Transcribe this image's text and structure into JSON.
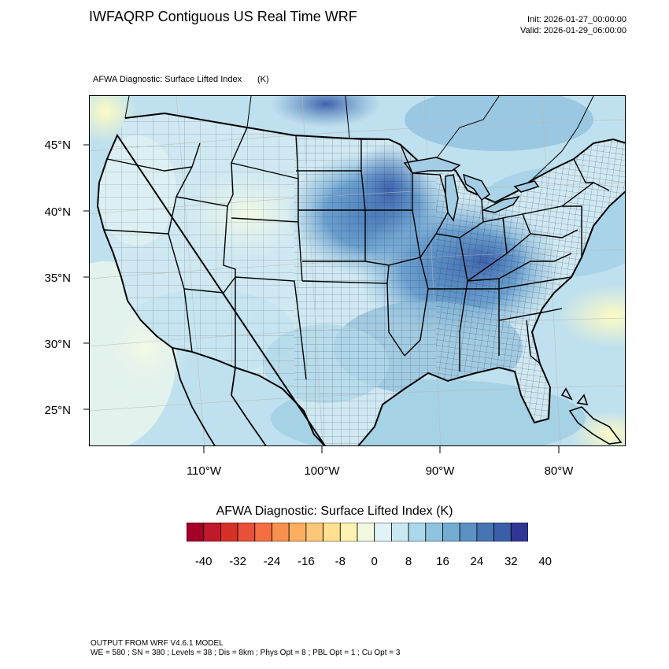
{
  "header": {
    "title": "IWFAQRP Contiguous US Real Time WRF",
    "init": "Init: 2026-01-27_00:00:00",
    "valid": "Valid: 2026-01-29_06:00:00"
  },
  "plot": {
    "subtitle": "AFWA Diagnostic: Surface Lifted Index",
    "units": "(K)"
  },
  "map": {
    "projection": "Lambert conformal",
    "lat_labels": [
      "45°N",
      "40°N",
      "35°N",
      "30°N",
      "25°N"
    ],
    "lon_labels": [
      "110°W",
      "100°W",
      "90°W",
      "80°W"
    ],
    "features": [
      "state-boundaries",
      "county-boundaries",
      "coastlines",
      "lat-lon-graticule"
    ]
  },
  "colorbar": {
    "title": "AFWA Diagnostic: Surface Lifted Index  (K)",
    "labels": [
      "-40",
      "-32",
      "-24",
      "-16",
      "-8",
      "0",
      "8",
      "16",
      "24",
      "32",
      "40"
    ],
    "colors": [
      "#a50026",
      "#c2182b",
      "#d73027",
      "#e9503a",
      "#f46d43",
      "#f8904f",
      "#fdae61",
      "#fec77a",
      "#fee090",
      "#fef2b0",
      "#f2f9e0",
      "#e0f3f8",
      "#c9e8f2",
      "#abd9e9",
      "#90c4de",
      "#74add1",
      "#5c91c4",
      "#4575b4",
      "#3b5ea8",
      "#313695"
    ]
  },
  "footer": {
    "line1": "OUTPUT FROM WRF V4.6.1 MODEL",
    "line2": "WE = 580 ; SN = 380 ; Levels = 38 ; Dis = 8km ; Phys Opt = 8 ; PBL Opt = 1 ; Cu Opt = 3"
  }
}
